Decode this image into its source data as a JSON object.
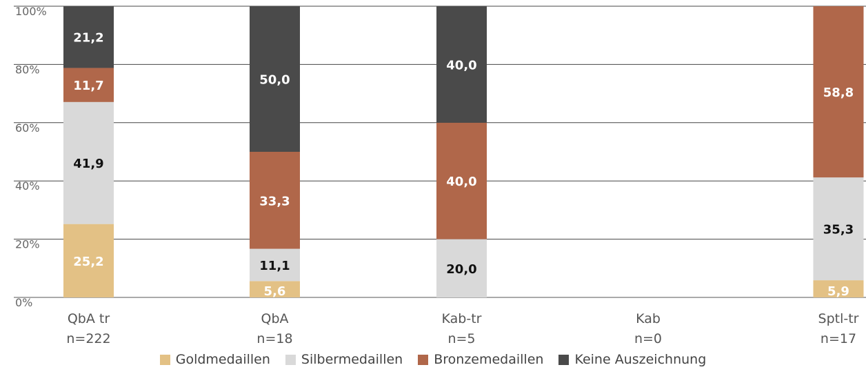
{
  "chart_data": {
    "type": "bar",
    "stacked": true,
    "y_tick_labels": [
      "0%",
      "20%",
      "40%",
      "60%",
      "80%",
      "100%"
    ],
    "ylim": [
      0,
      100
    ],
    "grid": true,
    "legend_position": "bottom",
    "categories": [
      {
        "name": "QbA tr",
        "n": "n=222"
      },
      {
        "name": "QbA",
        "n": "n=18"
      },
      {
        "name": "Kab-tr",
        "n": "n=5"
      },
      {
        "name": "Kab",
        "n": "n=0"
      },
      {
        "name": "Sptl-tr",
        "n": "n=17"
      }
    ],
    "series": [
      {
        "name": "Goldmedaillen",
        "color": "#E3C185",
        "label_color": "#ffffff",
        "values": [
          25.2,
          5.6,
          0,
          0,
          5.9
        ],
        "labels": [
          "25,2",
          "5,6",
          "",
          "",
          "5,9"
        ]
      },
      {
        "name": "Silbermedaillen",
        "color": "#D9D9D9",
        "label_color": "#111111",
        "values": [
          41.9,
          11.1,
          20.0,
          0,
          35.3
        ],
        "labels": [
          "41,9",
          "11,1",
          "20,0",
          "",
          "35,3"
        ]
      },
      {
        "name": "Bronzemedaillen",
        "color": "#B0674A",
        "label_color": "#ffffff",
        "values": [
          11.7,
          33.3,
          40.0,
          0,
          58.8
        ],
        "labels": [
          "11,7",
          "33,3",
          "40,0",
          "",
          "58,8"
        ]
      },
      {
        "name": "Keine Auszeichnung",
        "color": "#4A4A4A",
        "label_color": "#ffffff",
        "values": [
          21.2,
          50.0,
          40.0,
          0,
          0
        ],
        "labels": [
          "21,2",
          "50,0",
          "40,0",
          "",
          ""
        ]
      }
    ]
  }
}
